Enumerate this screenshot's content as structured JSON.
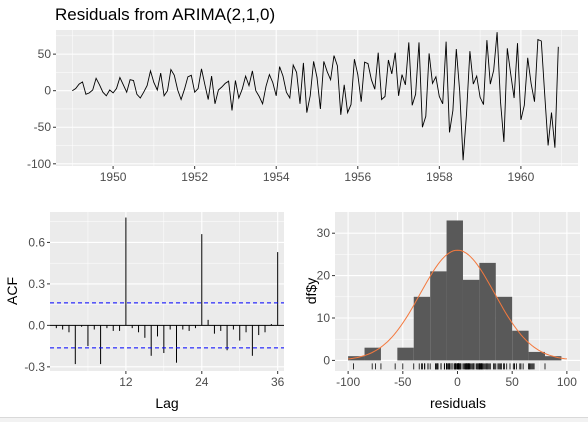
{
  "title": "Residuals from ARIMA(2,1,0)",
  "chart_data": [
    {
      "type": "line",
      "panel": "residuals-time-series",
      "xlim": [
        1948.6,
        1961.4
      ],
      "ylim": [
        -103,
        83
      ],
      "x_ticks": [
        1950,
        1952,
        1954,
        1956,
        1958,
        1960
      ],
      "y_ticks": [
        -100,
        -50,
        0,
        50
      ],
      "grid": true,
      "start": 1949,
      "frequency": 12,
      "values": [
        0,
        3,
        9,
        12,
        -5,
        -3,
        1,
        17,
        8,
        -2,
        -7,
        1,
        -3,
        3,
        18,
        8,
        -2,
        15,
        14,
        -5,
        -10,
        -2,
        7,
        27,
        11,
        1,
        24,
        -7,
        0,
        29,
        21,
        1,
        -12,
        2,
        19,
        21,
        -2,
        3,
        30,
        8,
        -12,
        20,
        -18,
        1,
        5,
        10,
        13,
        -27,
        14,
        -10,
        2,
        20,
        7,
        27,
        0,
        -8,
        -18,
        6,
        22,
        11,
        -7,
        33,
        20,
        -2,
        -10,
        35,
        25,
        -18,
        38,
        -30,
        -7,
        40,
        18,
        -25,
        40,
        26,
        15,
        48,
        34,
        -33,
        8,
        -30,
        -19,
        43,
        22,
        -15,
        39,
        37,
        15,
        2,
        52,
        -12,
        -8,
        42,
        23,
        52,
        -7,
        22,
        8,
        66,
        -20,
        -5,
        66,
        -50,
        -35,
        51,
        10,
        19,
        -8,
        -18,
        67,
        -57,
        -27,
        57,
        -1,
        -95,
        -32,
        54,
        9,
        20,
        -9,
        -19,
        69,
        9,
        28,
        80,
        -15,
        -70,
        58,
        23,
        -10,
        65,
        -40,
        -20,
        45,
        10,
        -15,
        70,
        68,
        -5,
        -75,
        -30,
        -78,
        60
      ]
    },
    {
      "type": "bar",
      "panel": "acf",
      "xlabel": "Lag",
      "ylabel": "ACF",
      "x_ticks": [
        12,
        24,
        36
      ],
      "y_ticks": [
        -0.3,
        0.0,
        0.3,
        0.6
      ],
      "xlim": [
        0,
        37
      ],
      "ylim": [
        -0.33,
        0.82
      ],
      "confidence_bound": 0.163,
      "lags": [
        1,
        2,
        3,
        4,
        5,
        6,
        7,
        8,
        9,
        10,
        11,
        12,
        13,
        14,
        15,
        16,
        17,
        18,
        19,
        20,
        21,
        22,
        23,
        24,
        25,
        26,
        27,
        28,
        29,
        30,
        31,
        32,
        33,
        34,
        35,
        36
      ],
      "values": [
        -0.02,
        -0.03,
        -0.05,
        -0.28,
        -0.01,
        -0.15,
        -0.03,
        -0.28,
        -0.02,
        -0.04,
        -0.04,
        0.78,
        -0.02,
        -0.05,
        -0.09,
        -0.22,
        -0.08,
        -0.2,
        -0.03,
        -0.27,
        -0.03,
        -0.04,
        -0.02,
        0.66,
        0.04,
        -0.06,
        -0.04,
        -0.18,
        -0.03,
        -0.11,
        -0.05,
        -0.22,
        -0.07,
        -0.05,
        0.01,
        0.53
      ],
      "grid": true
    },
    {
      "type": "histogram",
      "panel": "residual-distribution",
      "xlabel": "residuals",
      "ylabel": "df$y",
      "x_ticks": [
        -100,
        -50,
        0,
        50,
        100
      ],
      "y_ticks": [
        0,
        10,
        20,
        30
      ],
      "xlim": [
        -112,
        112
      ],
      "ylim": [
        -2.5,
        35
      ],
      "bins": [
        {
          "x0": -100,
          "x1": -85,
          "count": 1
        },
        {
          "x0": -85,
          "x1": -70,
          "count": 3
        },
        {
          "x0": -70,
          "x1": -55,
          "count": 0
        },
        {
          "x0": -55,
          "x1": -40,
          "count": 3
        },
        {
          "x0": -40,
          "x1": -25,
          "count": 15
        },
        {
          "x0": -25,
          "x1": -10,
          "count": 21
        },
        {
          "x0": -10,
          "x1": 5,
          "count": 33
        },
        {
          "x0": 5,
          "x1": 20,
          "count": 19
        },
        {
          "x0": 20,
          "x1": 35,
          "count": 23
        },
        {
          "x0": 35,
          "x1": 50,
          "count": 15
        },
        {
          "x0": 50,
          "x1": 65,
          "count": 7
        },
        {
          "x0": 65,
          "x1": 80,
          "count": 2
        },
        {
          "x0": 80,
          "x1": 95,
          "count": 1
        }
      ],
      "density_curve": {
        "mean": 0,
        "sd": 34,
        "peak": 26,
        "color": "#f4793e"
      },
      "rug": true,
      "grid": true
    }
  ],
  "colors": {
    "panel_bg": "#ebebeb",
    "grid": "#ffffff",
    "line": "#000000",
    "bar_fill": "#595959",
    "ci_line": "#0000ff",
    "density": "#f4793e"
  }
}
